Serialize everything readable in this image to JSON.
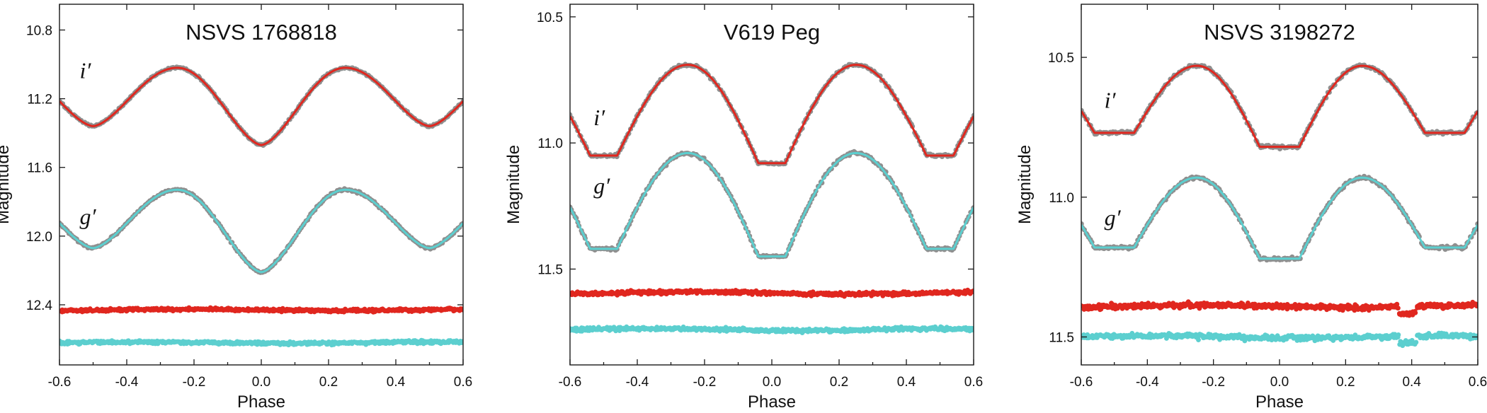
{
  "colors": {
    "observed": "#8f8f8f",
    "i_band_model": "#e0271f",
    "g_band_model": "#5ccfcf",
    "i_residuals": "#e0271f",
    "g_residuals": "#5ccfcf",
    "axis": "#1a1a1a"
  },
  "chart_data": [
    {
      "type": "scatter",
      "title": "NSVS 1768818",
      "xlabel": "Phase",
      "ylabel": "Magnitude",
      "xlim": [
        -0.6,
        0.6
      ],
      "ylim": [
        10.65,
        12.75
      ],
      "y_inverted": true,
      "xticks": [
        "-0.6",
        "-0.4",
        "-0.2",
        "0.0",
        "0.2",
        "0.4",
        "0.6"
      ],
      "yticks": [
        "10.8",
        "11.2",
        "11.6",
        "12.0",
        "12.4"
      ],
      "band_labels": [
        "i′",
        "g′"
      ],
      "band_label_positions": [
        {
          "x": -0.54,
          "y": 11.08
        },
        {
          "x": -0.54,
          "y": 11.93
        }
      ],
      "series": [
        {
          "name": "i′ model",
          "kind": "line",
          "shape": "ew",
          "max_mag": 11.02,
          "pri_min": 11.47,
          "sec_min": 11.36,
          "dip_width": 0.45
        },
        {
          "name": "g′ model",
          "kind": "line",
          "shape": "ew",
          "max_mag": 11.73,
          "pri_min": 12.21,
          "sec_min": 12.07,
          "dip_width": 0.45
        },
        {
          "name": "i′ residuals",
          "kind": "points",
          "level": 12.43,
          "scatter": 0.009
        },
        {
          "name": "g′ residuals",
          "kind": "points",
          "level": 12.62,
          "scatter": 0.01
        }
      ]
    },
    {
      "type": "scatter",
      "title": "V619 Peg",
      "xlabel": "Phase",
      "ylabel": "Magnitude",
      "xlim": [
        -0.6,
        0.6
      ],
      "ylim": [
        10.45,
        11.88
      ],
      "y_inverted": true,
      "xticks": [
        "-0.6",
        "-0.4",
        "-0.2",
        "0.0",
        "0.2",
        "0.4",
        "0.6"
      ],
      "yticks": [
        "10.5",
        "11.0",
        "11.5"
      ],
      "band_labels": [
        "i′",
        "g′"
      ],
      "band_label_positions": [
        {
          "x": -0.53,
          "y": 10.93
        },
        {
          "x": -0.53,
          "y": 11.2
        }
      ],
      "series": [
        {
          "name": "i′ model",
          "kind": "line",
          "shape": "flat",
          "max_mag": 10.69,
          "pri_min": 11.08,
          "sec_min": 11.05,
          "flat_half": 0.04
        },
        {
          "name": "g′ model",
          "kind": "line",
          "shape": "flat",
          "max_mag": 11.04,
          "pri_min": 11.45,
          "sec_min": 11.42,
          "flat_half": 0.04
        },
        {
          "name": "i′ residuals",
          "kind": "points",
          "level": 11.595,
          "scatter": 0.008
        },
        {
          "name": "g′ residuals",
          "kind": "points",
          "level": 11.74,
          "scatter": 0.008
        }
      ]
    },
    {
      "type": "scatter",
      "title": "NSVS 3198272",
      "xlabel": "Phase",
      "ylabel": "Magnitude",
      "xlim": [
        -0.6,
        0.6
      ],
      "ylim": [
        10.31,
        11.6
      ],
      "y_inverted": true,
      "xticks": [
        "-0.6",
        "-0.4",
        "-0.2",
        "0.0",
        "0.2",
        "0.4",
        "0.6"
      ],
      "yticks": [
        "10.5",
        "11.0",
        "11.5"
      ],
      "band_labels": [
        "i′",
        "g′"
      ],
      "band_label_positions": [
        {
          "x": -0.53,
          "y": 10.68
        },
        {
          "x": -0.53,
          "y": 11.1
        }
      ],
      "series": [
        {
          "name": "i′ model",
          "kind": "line",
          "shape": "flat",
          "max_mag": 10.53,
          "pri_min": 10.82,
          "sec_min": 10.77,
          "flat_half": 0.06
        },
        {
          "name": "g′ model",
          "kind": "line",
          "shape": "flat",
          "max_mag": 10.93,
          "pri_min": 11.22,
          "sec_min": 11.18,
          "flat_half": 0.06
        },
        {
          "name": "i′ residuals",
          "kind": "points",
          "level": 11.39,
          "scatter": 0.01,
          "dip_at": 0.38
        },
        {
          "name": "g′ residuals",
          "kind": "points",
          "level": 11.5,
          "scatter": 0.01,
          "dip_at": 0.38
        }
      ]
    }
  ]
}
